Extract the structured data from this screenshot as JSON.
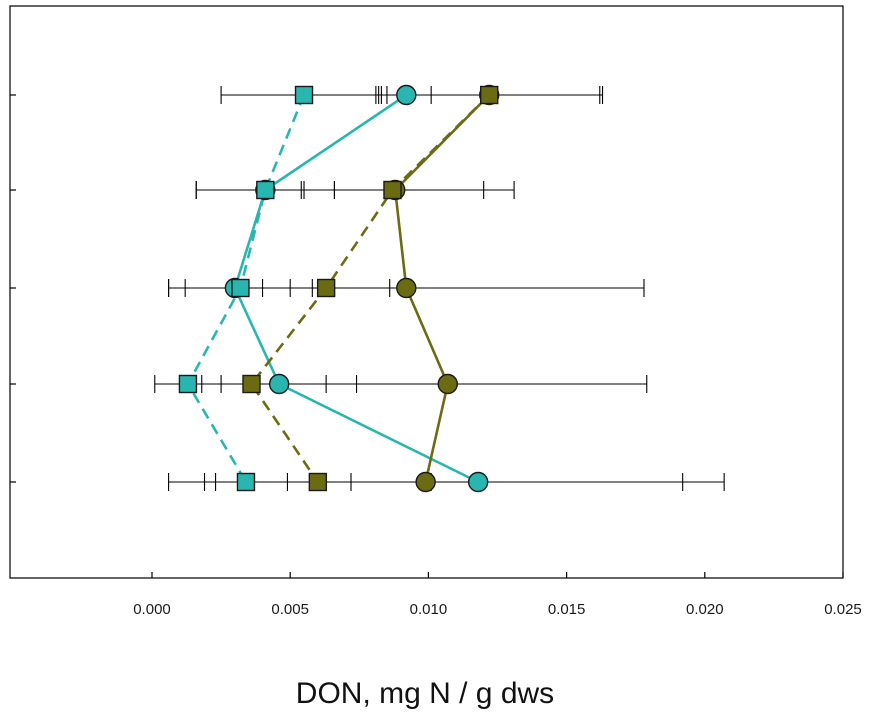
{
  "chart_data": {
    "type": "scatter",
    "title": "",
    "xlabel": "DON, mg N / g dws",
    "ylabel": "",
    "xlim": [
      -0.005,
      0.025
    ],
    "xticks": [
      0.0,
      0.005,
      0.01,
      0.015,
      0.02,
      0.025
    ],
    "xtick_labels": [
      "0.000",
      "0.005",
      "0.010",
      "0.015",
      "0.020",
      "0.025"
    ],
    "y_levels": 5,
    "y_tick_labels": [],
    "grid": false,
    "legend": "none",
    "series": [
      {
        "marker": "circle",
        "line_style": "solid",
        "color": "#29b6b0",
        "values": [
          0.0092,
          0.0041,
          0.003,
          0.0046,
          0.0118
        ],
        "err_low": [
          0.0083,
          0.0016,
          0.0012,
          0.0018,
          0.0072
        ],
        "err_high": [
          0.0101,
          0.0066,
          0.005,
          0.0074,
          0.0192
        ]
      },
      {
        "marker": "square",
        "line_style": "dashed",
        "color": "#29b6b0",
        "values": [
          0.0055,
          0.0041,
          0.0032,
          0.0013,
          0.0034
        ],
        "err_low": [
          0.0025,
          0.0016,
          0.0006,
          0.0001,
          0.0006
        ],
        "err_high": [
          0.0085,
          0.0066,
          0.0058,
          0.0025,
          0.0049
        ]
      },
      {
        "marker": "circle",
        "line_style": "solid",
        "color": "#6b6b12",
        "values": [
          0.0122,
          0.0088,
          0.0092,
          0.0107,
          0.0099
        ],
        "err_low": [
          0.0082,
          0.0055,
          0.0006,
          0.0035,
          0.0023
        ],
        "err_high": [
          0.0162,
          0.012,
          0.0178,
          0.0179,
          0.0207
        ]
      },
      {
        "marker": "square",
        "line_style": "dashed",
        "color": "#6b6b12",
        "values": [
          0.0122,
          0.0087,
          0.0063,
          0.0036,
          0.006
        ],
        "err_low": [
          0.0081,
          0.0054,
          0.004,
          0.0016,
          0.0019
        ],
        "err_high": [
          0.0163,
          0.0131,
          0.0086,
          0.0063,
          0.0101
        ]
      }
    ]
  }
}
